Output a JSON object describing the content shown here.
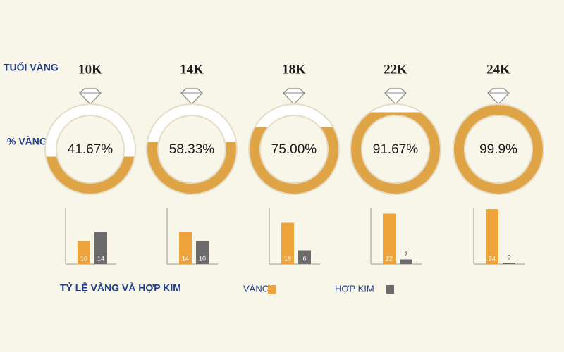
{
  "row_labels": {
    "karat": "TUỔI VÀNG",
    "percent": "% VÀNG"
  },
  "chart_data": [
    {
      "type": "ring",
      "categories": [
        "10K",
        "14K",
        "18K",
        "22K",
        "24K"
      ],
      "values": [
        41.67,
        58.33,
        75,
        91.67,
        99.9
      ],
      "value_labels": [
        "41.67%",
        "58.33%",
        "75.00%",
        "91.67%",
        "99.9%"
      ],
      "color": "#dfa445",
      "ylim": [
        0,
        100
      ]
    },
    {
      "type": "bar",
      "title": "TỶ LỆ VÀNG VÀ HỢP KIM",
      "ylim": [
        0,
        24
      ],
      "series": [
        {
          "name": "VÀNG",
          "color": "#eea43a",
          "values": [
            10,
            14,
            18,
            22,
            24
          ]
        },
        {
          "name": "HỢP KIM",
          "color": "#6b6b6b",
          "values": [
            14,
            10,
            6,
            2,
            0
          ]
        }
      ]
    }
  ]
}
